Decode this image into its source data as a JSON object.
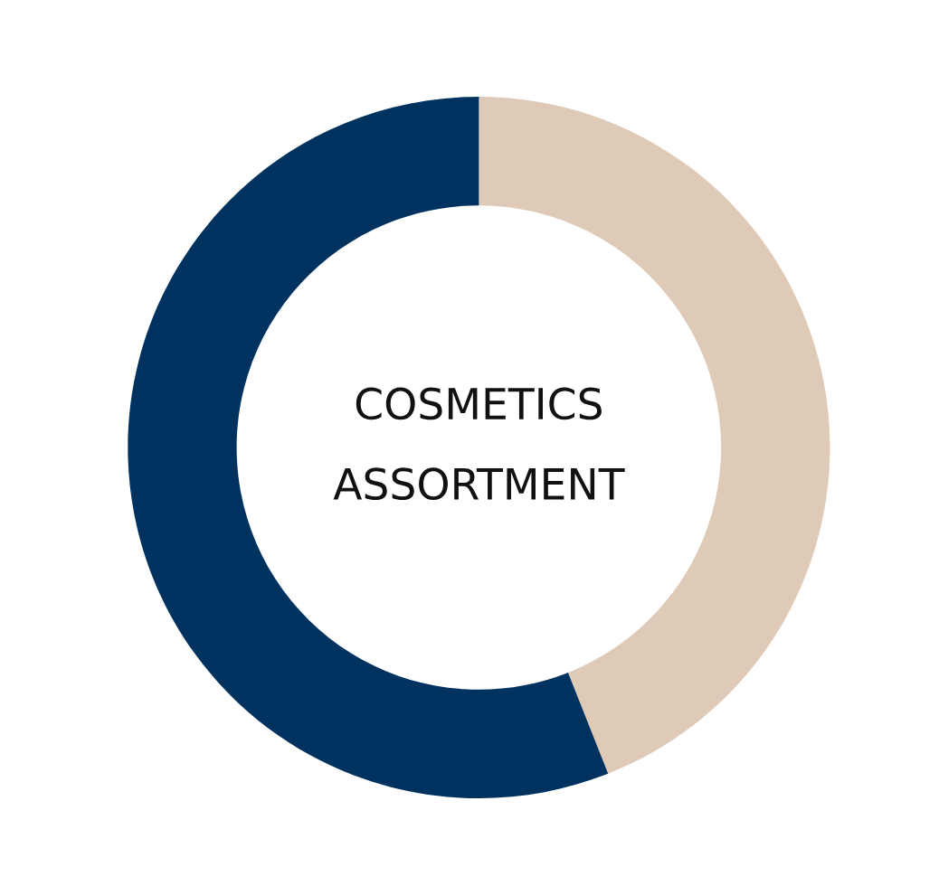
{
  "chart_data": {
    "type": "donut",
    "title": "COSMETICS\nASSORTMENT",
    "categories": [
      null,
      null
    ],
    "values": [
      44,
      56
    ],
    "colors": [
      "#dfcab8",
      "#003260"
    ]
  }
}
